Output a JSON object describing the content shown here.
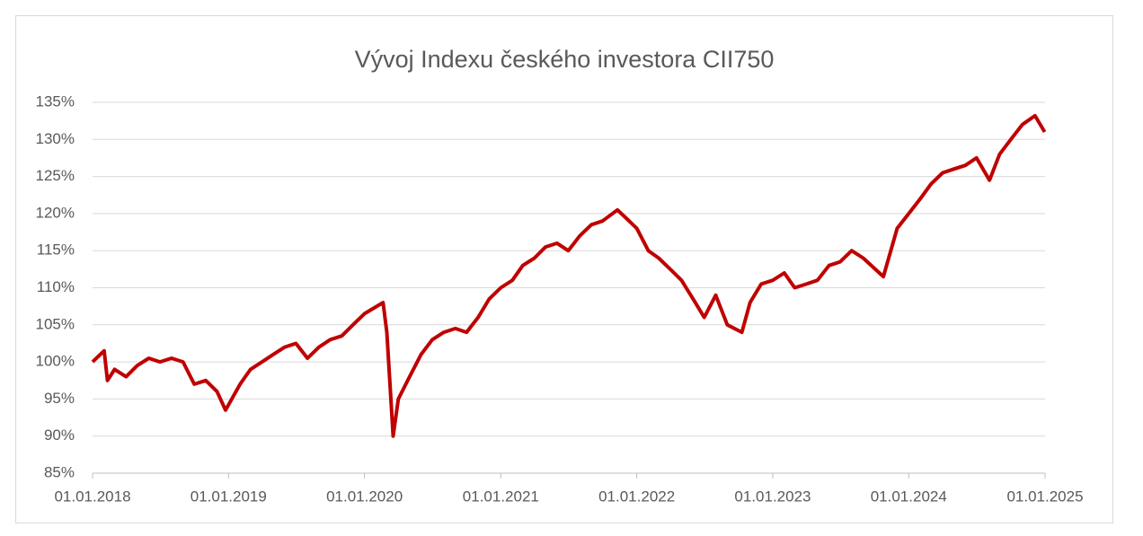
{
  "chart_data": {
    "type": "line",
    "title": "Vývoj Indexu českého investora CII750",
    "x": [
      "01.01.2018",
      "01.02.2018",
      "10.02.2018",
      "01.03.2018",
      "01.04.2018",
      "01.05.2018",
      "01.06.2018",
      "01.07.2018",
      "01.08.2018",
      "01.09.2018",
      "01.10.2018",
      "01.11.2018",
      "01.12.2018",
      "24.12.2018",
      "01.02.2019",
      "01.03.2019",
      "01.04.2019",
      "01.05.2019",
      "01.06.2019",
      "01.07.2019",
      "01.08.2019",
      "01.09.2019",
      "01.10.2019",
      "01.11.2019",
      "01.12.2019",
      "01.01.2020",
      "20.02.2020",
      "01.03.2020",
      "18.03.2020",
      "01.04.2020",
      "01.05.2020",
      "01.06.2020",
      "01.07.2020",
      "01.08.2020",
      "01.09.2020",
      "01.10.2020",
      "01.11.2020",
      "01.12.2020",
      "01.01.2021",
      "01.02.2021",
      "01.03.2021",
      "01.04.2021",
      "01.05.2021",
      "01.06.2021",
      "01.07.2021",
      "01.08.2021",
      "01.09.2021",
      "01.10.2021",
      "10.11.2021",
      "01.12.2021",
      "01.01.2022",
      "01.02.2022",
      "01.03.2022",
      "01.04.2022",
      "01.05.2022",
      "01.06.2022",
      "01.07.2022",
      "01.08.2022",
      "01.09.2022",
      "10.10.2022",
      "01.11.2022",
      "01.12.2022",
      "01.01.2023",
      "01.02.2023",
      "01.03.2023",
      "01.04.2023",
      "01.05.2023",
      "01.06.2023",
      "01.07.2023",
      "01.08.2023",
      "01.09.2023",
      "25.10.2023",
      "01.12.2023",
      "01.01.2024",
      "01.02.2024",
      "01.03.2024",
      "01.04.2024",
      "01.05.2024",
      "01.06.2024",
      "01.07.2024",
      "05.08.2024",
      "01.09.2024",
      "01.10.2024",
      "01.11.2024",
      "05.12.2024",
      "31.12.2024"
    ],
    "series": [
      {
        "name": "CII750",
        "color": "#c00000",
        "values": [
          100,
          101.5,
          97.5,
          99,
          98,
          99.5,
          100.5,
          100,
          100.5,
          100,
          97,
          97.5,
          96,
          93.5,
          97,
          99,
          100,
          101,
          102,
          102.5,
          100.5,
          102,
          103,
          103.5,
          105,
          106.5,
          108,
          104,
          90,
          95,
          98,
          101,
          103,
          104,
          104.5,
          104,
          106,
          108.5,
          110,
          111,
          113,
          114,
          115.5,
          116,
          115,
          117,
          118.5,
          119,
          120.5,
          119.5,
          118,
          115,
          114,
          112.5,
          111,
          108.5,
          106,
          109,
          105,
          104,
          108,
          110.5,
          111,
          112,
          110,
          110.5,
          111,
          113,
          113.5,
          115,
          114,
          111.5,
          118,
          120,
          122,
          124,
          125.5,
          126,
          126.5,
          127.5,
          124.5,
          128,
          130,
          132,
          133.2,
          131
        ]
      }
    ],
    "xlim": [
      "01.01.2018",
      "01.01.2025"
    ],
    "xticks": [
      "01.01.2018",
      "01.01.2019",
      "01.01.2020",
      "01.01.2021",
      "01.01.2022",
      "01.01.2023",
      "01.01.2024",
      "01.01.2025"
    ],
    "ylim": [
      85,
      135
    ],
    "yticks": [
      {
        "value": 85,
        "label": "85%"
      },
      {
        "value": 90,
        "label": "90%"
      },
      {
        "value": 95,
        "label": "95%"
      },
      {
        "value": 100,
        "label": "100%"
      },
      {
        "value": 105,
        "label": "105%"
      },
      {
        "value": 110,
        "label": "110%"
      },
      {
        "value": 115,
        "label": "115%"
      },
      {
        "value": 120,
        "label": "120%"
      },
      {
        "value": 125,
        "label": "125%"
      },
      {
        "value": 130,
        "label": "130%"
      },
      {
        "value": 135,
        "label": "135%"
      }
    ],
    "grid": true
  }
}
